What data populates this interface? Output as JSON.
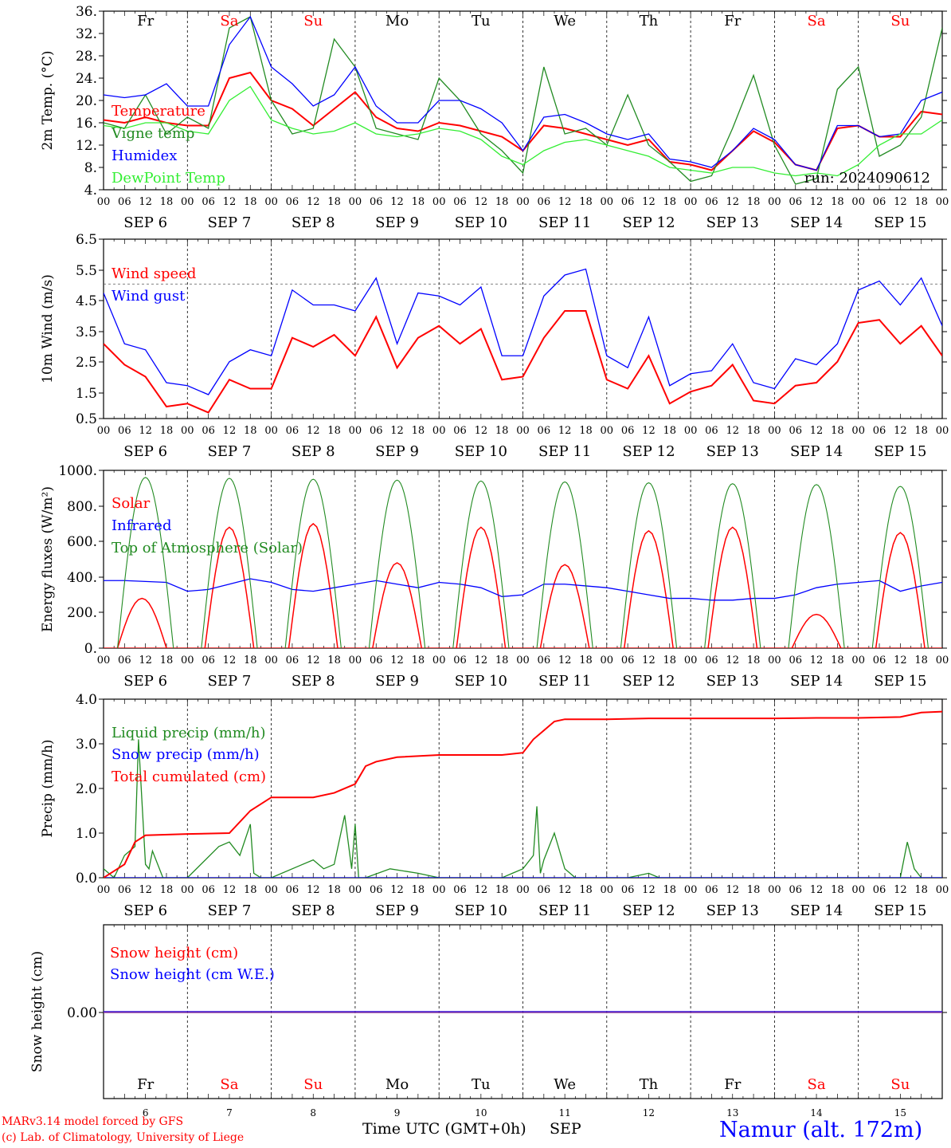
{
  "page": {
    "footer_model": "MARv3.14 model forced by GFS",
    "footer_lab": "(c) Lab. of Climatology, University of Liege",
    "footer_axis": "Time UTC (GMT+0h)",
    "footer_month": "SEP",
    "footer_station": "Namur (alt. 172m)",
    "run": "run: 2024090612"
  },
  "x_axis": {
    "hour_ticks": [
      "00",
      "06",
      "12",
      "18"
    ],
    "end_tick": "00",
    "dates": [
      "SEP  6",
      "SEP  7",
      "SEP  8",
      "SEP  9",
      "SEP 10",
      "SEP 11",
      "SEP 12",
      "SEP 13",
      "SEP 14",
      "SEP 15"
    ],
    "weekdays": [
      "Fr",
      "Sa",
      "Su",
      "Mo",
      "Tu",
      "We",
      "Th",
      "Fr",
      "Sa",
      "Su"
    ],
    "weekday_colors": [
      "#000000",
      "#ff0000",
      "#ff0000",
      "#000000",
      "#000000",
      "#000000",
      "#000000",
      "#000000",
      "#ff0000",
      "#ff0000"
    ],
    "day_numbers": [
      "6",
      "7",
      "8",
      "9",
      "10",
      "11",
      "12",
      "13",
      "14",
      "15"
    ]
  },
  "chart_data": [
    {
      "type": "line",
      "ylabel": "2m Temp. (°C)",
      "ylim": [
        4,
        36
      ],
      "yticks": [
        "36.",
        "32.",
        "28.",
        "24.",
        "20.",
        "16.",
        "12.",
        "8.",
        "4."
      ],
      "x_unit": "hours since SEP 6 00 UTC",
      "series": [
        {
          "name": "Temperature",
          "color": "#ff0000",
          "x": [
            0,
            6,
            12,
            18,
            24,
            30,
            36,
            42,
            48,
            54,
            60,
            66,
            72,
            78,
            84,
            90,
            96,
            102,
            108,
            114,
            120,
            126,
            132,
            138,
            144,
            150,
            156,
            162,
            168,
            174,
            180,
            186,
            192,
            198,
            204,
            210,
            216,
            222,
            228,
            234,
            240
          ],
          "y": [
            16.5,
            16,
            17,
            16,
            15.5,
            15.5,
            24,
            25,
            20,
            18.5,
            15.5,
            18.5,
            21.5,
            17,
            15,
            14.5,
            16,
            15.5,
            14.5,
            13.5,
            11,
            15.5,
            15,
            14,
            13,
            12,
            13,
            9,
            8.5,
            7.5,
            11,
            14.5,
            12.5,
            8.5,
            7.5,
            15,
            15.5,
            13.5,
            13.5,
            18,
            17.5
          ]
        },
        {
          "name": "Vigne temp",
          "color": "#228b22",
          "x": [
            0,
            6,
            12,
            18,
            24,
            30,
            36,
            42,
            48,
            54,
            60,
            66,
            72,
            78,
            84,
            90,
            96,
            102,
            108,
            114,
            120,
            126,
            132,
            138,
            144,
            150,
            156,
            162,
            168,
            174,
            180,
            186,
            192,
            198,
            204,
            210,
            216,
            222,
            228,
            234,
            240
          ],
          "y": [
            16,
            15,
            21,
            14,
            17,
            15,
            33,
            35,
            20,
            14,
            15,
            31,
            26,
            15,
            14,
            13,
            24,
            20,
            14,
            11,
            7,
            26,
            14,
            15,
            12,
            21,
            12,
            9,
            5.5,
            6.5,
            15,
            24.5,
            12,
            5,
            6,
            22,
            26,
            10,
            12,
            17,
            33
          ]
        },
        {
          "name": "Humidex",
          "color": "#0000ff",
          "x": [
            0,
            6,
            12,
            18,
            24,
            30,
            36,
            42,
            48,
            54,
            60,
            66,
            72,
            78,
            84,
            90,
            96,
            102,
            108,
            114,
            120,
            126,
            132,
            138,
            144,
            150,
            156,
            162,
            168,
            174,
            180,
            186,
            192,
            198,
            204,
            210,
            216,
            222,
            228,
            234,
            240
          ],
          "y": [
            21,
            20.5,
            21,
            23,
            19,
            19,
            30,
            35,
            26,
            23,
            19,
            21,
            26,
            19,
            16,
            16,
            20,
            20,
            18.5,
            16,
            11,
            17,
            17.5,
            16,
            14,
            13,
            14,
            9.5,
            9,
            8,
            11,
            15,
            13,
            8.5,
            7.5,
            15.5,
            15.5,
            13.5,
            14,
            20,
            21.5
          ]
        },
        {
          "name": "DewPoint Temp",
          "color": "#33ee33",
          "x": [
            0,
            6,
            12,
            18,
            24,
            30,
            36,
            42,
            48,
            54,
            60,
            66,
            72,
            78,
            84,
            90,
            96,
            102,
            108,
            114,
            120,
            126,
            132,
            138,
            144,
            150,
            156,
            162,
            168,
            174,
            180,
            186,
            192,
            198,
            204,
            210,
            216,
            222,
            228,
            234,
            240
          ],
          "y": [
            15.5,
            15,
            16,
            16,
            14.5,
            14,
            20,
            22.5,
            16.5,
            15,
            14,
            14.5,
            16,
            14,
            13.5,
            14,
            15,
            14.5,
            13,
            10,
            8.5,
            11,
            12.5,
            13,
            12,
            11,
            10,
            8,
            7.5,
            7,
            8,
            8,
            7,
            6.5,
            7,
            6.5,
            8.5,
            12,
            14,
            14,
            16.5
          ]
        }
      ],
      "hline": null
    },
    {
      "type": "line",
      "ylabel": "10m Wind (m/s)",
      "ylim": [
        0.5,
        6.5
      ],
      "yticks": [
        "6.5",
        "5.5",
        "4.5",
        "3.5",
        "2.5",
        "1.5",
        "0.5"
      ],
      "x_unit": "hours since SEP 6 00 UTC",
      "series": [
        {
          "name": "Wind speed",
          "color": "#ff0000",
          "x": [
            0,
            6,
            12,
            18,
            24,
            30,
            36,
            42,
            48,
            54,
            60,
            66,
            72,
            78,
            84,
            90,
            96,
            102,
            108,
            114,
            120,
            126,
            132,
            138,
            144,
            150,
            156,
            162,
            168,
            174,
            180,
            186,
            192,
            198,
            204,
            210,
            216,
            222,
            228,
            234,
            240
          ],
          "y": [
            3,
            2.3,
            1.9,
            0.9,
            1.0,
            0.7,
            1.8,
            1.5,
            1.5,
            3.2,
            2.9,
            3.3,
            2.6,
            3.9,
            2.2,
            3.2,
            3.6,
            3.0,
            3.5,
            1.8,
            1.9,
            3.2,
            4.1,
            4.1,
            1.8,
            1.5,
            2.6,
            1.0,
            1.4,
            1.6,
            2.3,
            1.1,
            1.0,
            1.6,
            1.7,
            2.4,
            3.7,
            3.8,
            3.0,
            3.6,
            2.6
          ]
        },
        {
          "name": "Wind gust",
          "color": "#0000ff",
          "x": [
            0,
            6,
            12,
            18,
            24,
            30,
            36,
            42,
            48,
            54,
            60,
            66,
            72,
            78,
            84,
            90,
            96,
            102,
            108,
            114,
            120,
            126,
            132,
            138,
            144,
            150,
            156,
            162,
            168,
            174,
            180,
            186,
            192,
            198,
            204,
            210,
            216,
            222,
            228,
            234,
            240
          ],
          "y": [
            4.7,
            3.0,
            2.8,
            1.7,
            1.6,
            1.3,
            2.4,
            2.8,
            2.6,
            4.8,
            4.3,
            4.3,
            4.1,
            5.2,
            3.0,
            4.7,
            4.6,
            4.3,
            4.9,
            2.6,
            2.6,
            4.6,
            5.3,
            5.5,
            2.6,
            2.2,
            3.9,
            1.6,
            2.0,
            2.1,
            3.0,
            1.7,
            1.5,
            2.5,
            2.3,
            3.0,
            4.8,
            5.1,
            4.3,
            5.2,
            3.6
          ]
        }
      ],
      "hline": 5.0
    },
    {
      "type": "line",
      "ylabel": "Energy fluxes (W/m²)",
      "ylim": [
        0,
        1000
      ],
      "yticks": [
        "1000.",
        "800.",
        "600.",
        "400.",
        "200.",
        "0."
      ],
      "x_unit": "hours since SEP 6 00 UTC",
      "series": [
        {
          "name": "Solar",
          "color": "#ff0000",
          "peaks": [
            {
              "h": 11,
              "v": 280
            },
            {
              "h": 36,
              "v": 680
            },
            {
              "h": 60,
              "v": 700
            },
            {
              "h": 84,
              "v": 480
            },
            {
              "h": 108,
              "v": 680
            },
            {
              "h": 132,
              "v": 470
            },
            {
              "h": 156,
              "v": 660
            },
            {
              "h": 180,
              "v": 680
            },
            {
              "h": 204,
              "v": 190
            },
            {
              "h": 228,
              "v": 650
            }
          ]
        },
        {
          "name": "Infrared",
          "color": "#0000ff",
          "x": [
            0,
            6,
            12,
            18,
            24,
            30,
            36,
            42,
            48,
            54,
            60,
            66,
            72,
            78,
            84,
            90,
            96,
            102,
            108,
            114,
            120,
            126,
            132,
            138,
            144,
            150,
            156,
            162,
            168,
            174,
            180,
            186,
            192,
            198,
            204,
            210,
            216,
            222,
            228,
            234,
            240
          ],
          "y": [
            380,
            380,
            375,
            370,
            320,
            330,
            360,
            390,
            370,
            330,
            320,
            340,
            360,
            380,
            360,
            340,
            370,
            360,
            340,
            290,
            300,
            360,
            360,
            350,
            340,
            320,
            300,
            280,
            280,
            270,
            270,
            280,
            280,
            300,
            340,
            360,
            370,
            380,
            320,
            350,
            370
          ]
        },
        {
          "name": "Top of Atmosphere (Solar)",
          "color": "#228b22",
          "peak_values": [
            960,
            955,
            950,
            945,
            940,
            935,
            930,
            925,
            920,
            910
          ]
        }
      ],
      "hline": null
    },
    {
      "type": "line",
      "ylabel": "Precip (mm/h)",
      "ylim": [
        0,
        4
      ],
      "yticks": [
        "4.0",
        "3.0",
        "2.0",
        "1.0",
        "0.0"
      ],
      "x_unit": "hours since SEP 6 00 UTC",
      "series": [
        {
          "name": "Liquid precip (mm/h)",
          "color": "#228b22",
          "x": [
            0,
            3,
            6,
            9,
            10,
            12,
            13,
            14,
            17,
            21,
            24,
            33,
            36,
            39,
            42,
            43,
            45,
            48,
            57,
            60,
            63,
            66,
            69,
            71,
            72,
            73,
            75,
            82,
            90,
            96,
            114,
            117,
            120,
            123,
            124,
            125,
            126,
            129,
            132,
            135,
            138,
            141,
            150,
            156,
            159,
            162,
            180,
            210,
            228,
            230,
            232,
            234,
            240
          ],
          "y": [
            0.2,
            0,
            0.5,
            0.7,
            3.1,
            0.3,
            0.2,
            0.6,
            0,
            0,
            0,
            0.7,
            0.8,
            0.5,
            1.2,
            0.1,
            0,
            0,
            0.3,
            0.4,
            0.2,
            0.3,
            1.4,
            0.2,
            1.2,
            0,
            0,
            0.2,
            0.1,
            0,
            0,
            0.1,
            0.2,
            0.5,
            1.6,
            0.1,
            0.4,
            1.0,
            0.2,
            0,
            0,
            0,
            0,
            0.1,
            0,
            0,
            0,
            0,
            0,
            0.8,
            0.2,
            0,
            0
          ]
        },
        {
          "name": "Snow precip (mm/h)",
          "color": "#0000ff",
          "x": [
            0,
            240
          ],
          "y": [
            0,
            0
          ]
        },
        {
          "name": "Total cumulated (cm)",
          "color": "#ff0000",
          "x": [
            0,
            6,
            9,
            12,
            24,
            36,
            42,
            48,
            60,
            66,
            72,
            75,
            78,
            84,
            96,
            108,
            114,
            120,
            123,
            126,
            129,
            132,
            144,
            156,
            168,
            180,
            192,
            204,
            216,
            228,
            234,
            240
          ],
          "y": [
            0,
            0.3,
            0.8,
            0.95,
            0.98,
            1.0,
            1.5,
            1.8,
            1.8,
            1.9,
            2.1,
            2.5,
            2.6,
            2.7,
            2.75,
            2.75,
            2.75,
            2.8,
            3.1,
            3.3,
            3.5,
            3.55,
            3.55,
            3.57,
            3.57,
            3.57,
            3.57,
            3.58,
            3.58,
            3.6,
            3.7,
            3.72
          ]
        }
      ],
      "hline": null
    },
    {
      "type": "line",
      "ylabel": "Snow height (cm)",
      "ylim": [
        -1,
        1
      ],
      "yticks": [
        "0.00"
      ],
      "x_unit": "hours since SEP 6 00 UTC",
      "series": [
        {
          "name": "Snow height (cm)",
          "color": "#ff0000",
          "x": [
            0,
            240
          ],
          "y": [
            0,
            0
          ]
        },
        {
          "name": "Snow height (cm W.E.)",
          "color": "#0000ff",
          "x": [
            0,
            240
          ],
          "y": [
            0,
            0
          ]
        }
      ],
      "hline": null
    }
  ]
}
